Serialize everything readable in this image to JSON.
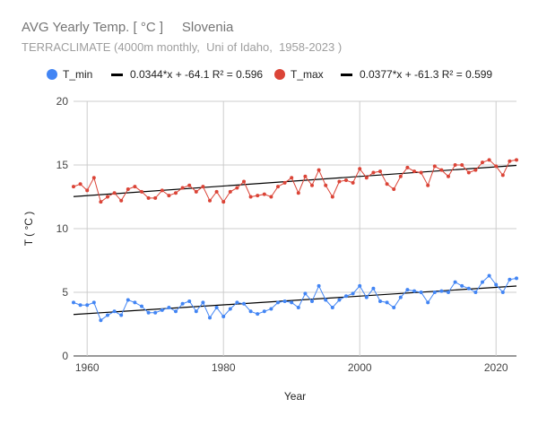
{
  "chart_data": {
    "type": "line",
    "title": "AVG Yearly Temp. [ °C ]     Slovenia",
    "subtitle": "TERRACLIMATE (4000m monthly,  Uni of Idaho,  1958-2023 )",
    "xlabel": "Year",
    "ylabel": "T ( °C )",
    "xlim": [
      1958,
      2023
    ],
    "ylim": [
      0,
      20
    ],
    "x_ticks": [
      1960,
      1980,
      2000,
      2020
    ],
    "y_ticks": [
      0,
      5,
      10,
      15,
      20
    ],
    "grid": true,
    "legend_position": "top",
    "x": [
      1958,
      1959,
      1960,
      1961,
      1962,
      1963,
      1964,
      1965,
      1966,
      1967,
      1968,
      1969,
      1970,
      1971,
      1972,
      1973,
      1974,
      1975,
      1976,
      1977,
      1978,
      1979,
      1980,
      1981,
      1982,
      1983,
      1984,
      1985,
      1986,
      1987,
      1988,
      1989,
      1990,
      1991,
      1992,
      1993,
      1994,
      1995,
      1996,
      1997,
      1998,
      1999,
      2000,
      2001,
      2002,
      2003,
      2004,
      2005,
      2006,
      2007,
      2008,
      2009,
      2010,
      2011,
      2012,
      2013,
      2014,
      2015,
      2016,
      2017,
      2018,
      2019,
      2020,
      2021,
      2022,
      2023
    ],
    "series": [
      {
        "name": "T_min",
        "color": "#4285f4",
        "values": [
          4.2,
          4.0,
          4.0,
          4.2,
          2.8,
          3.2,
          3.5,
          3.2,
          4.4,
          4.2,
          3.9,
          3.4,
          3.4,
          3.6,
          3.8,
          3.5,
          4.1,
          4.3,
          3.5,
          4.2,
          3.0,
          3.8,
          3.1,
          3.7,
          4.2,
          4.1,
          3.5,
          3.3,
          3.5,
          3.7,
          4.2,
          4.3,
          4.2,
          3.8,
          4.9,
          4.3,
          5.5,
          4.4,
          3.8,
          4.4,
          4.7,
          4.9,
          5.5,
          4.6,
          5.3,
          4.3,
          4.2,
          3.8,
          4.6,
          5.2,
          5.1,
          5.0,
          4.2,
          5.0,
          5.1,
          5.0,
          5.8,
          5.5,
          5.3,
          5.0,
          5.8,
          6.3,
          5.6,
          5.0,
          6.0,
          6.1
        ]
      },
      {
        "name": "T_max",
        "color": "#db4437",
        "values": [
          13.3,
          13.5,
          13.0,
          14.0,
          12.1,
          12.5,
          12.8,
          12.2,
          13.1,
          13.3,
          12.9,
          12.4,
          12.4,
          13.0,
          12.6,
          12.8,
          13.2,
          13.4,
          12.9,
          13.3,
          12.2,
          12.9,
          12.1,
          12.9,
          13.2,
          13.7,
          12.5,
          12.6,
          12.7,
          12.5,
          13.3,
          13.6,
          14.0,
          12.8,
          14.1,
          13.4,
          14.6,
          13.4,
          12.5,
          13.7,
          13.8,
          13.6,
          14.7,
          14.0,
          14.4,
          14.5,
          13.5,
          13.1,
          14.1,
          14.8,
          14.5,
          14.4,
          13.4,
          14.9,
          14.6,
          14.1,
          15.0,
          15.0,
          14.4,
          14.6,
          15.2,
          15.4,
          14.9,
          14.2,
          15.3,
          15.4
        ]
      }
    ],
    "trendlines": [
      {
        "label": "0.0344*x + -64.1 R² = 0.596",
        "slope": 0.0344,
        "intercept": -64.1,
        "color": "#000000"
      },
      {
        "label": "0.0377*x + -61.3 R² = 0.599",
        "slope": 0.0377,
        "intercept": -61.3,
        "color": "#000000"
      }
    ]
  }
}
